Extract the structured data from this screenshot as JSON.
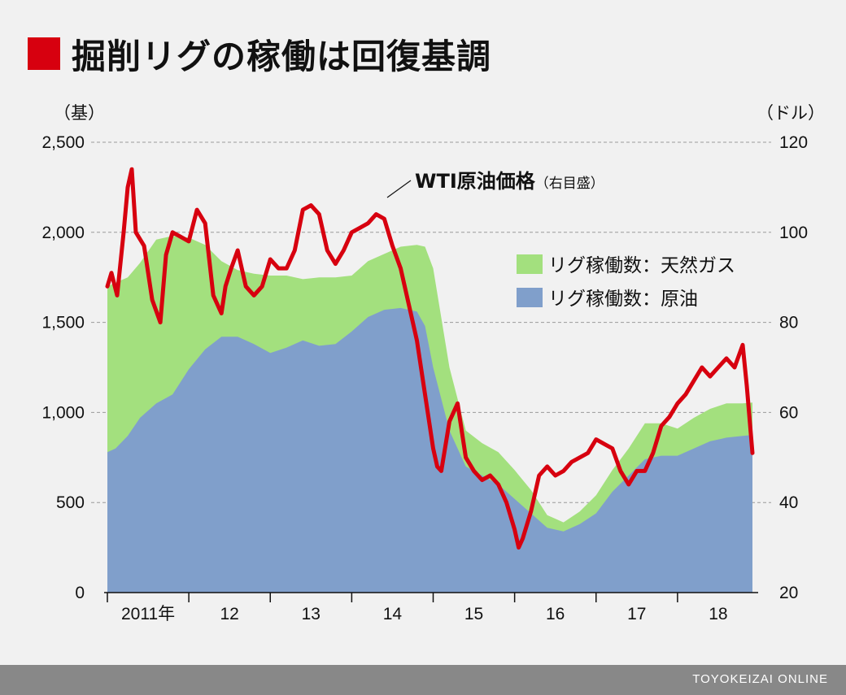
{
  "title": "掘削リグの稼働は回復基調",
  "footer": "TOYOKEIZAI ONLINE",
  "chart_data": {
    "type": "area",
    "left_axis_unit": "（基）",
    "right_axis_unit": "（ドル）",
    "left_ylim": [
      0,
      2500
    ],
    "right_ylim": [
      20,
      120
    ],
    "left_ticks": [
      "0",
      "500",
      "1,000",
      "1,500",
      "2,000",
      "2,500"
    ],
    "left_tick_values": [
      0,
      500,
      1000,
      1500,
      2000,
      2500
    ],
    "right_ticks": [
      "20",
      "40",
      "60",
      "80",
      "100",
      "120"
    ],
    "right_tick_values": [
      20,
      40,
      60,
      80,
      100,
      120
    ],
    "x_labels": [
      "2011年",
      "12",
      "13",
      "14",
      "15",
      "16",
      "17",
      "18"
    ],
    "x_label_positions": [
      2011.5,
      2012.5,
      2013.5,
      2014.5,
      2015.5,
      2016.5,
      2017.5,
      2018.5
    ],
    "x_range": [
      2011,
      2018.95
    ],
    "grid": "horizontal-dashed",
    "colors": {
      "total": "#a3e07e",
      "oil": "#809fcb",
      "wti": "#d7000f"
    },
    "legend": {
      "placement": "right",
      "items": [
        {
          "label": "リグ稼働数：天然ガス",
          "color": "#a3e07e"
        },
        {
          "label": "リグ稼働数：原油",
          "color": "#809fcb"
        }
      ]
    },
    "annotation": {
      "label": "WTI原油価格",
      "suffix": "（右目盛）"
    },
    "series": [
      {
        "name": "リグ稼働数：原油",
        "axis": "left",
        "x": [
          2011.0,
          2011.1,
          2011.25,
          2011.4,
          2011.6,
          2011.8,
          2012.0,
          2012.2,
          2012.4,
          2012.6,
          2012.8,
          2013.0,
          2013.2,
          2013.4,
          2013.6,
          2013.8,
          2014.0,
          2014.2,
          2014.4,
          2014.6,
          2014.8,
          2014.9,
          2015.0,
          2015.2,
          2015.4,
          2015.6,
          2015.8,
          2016.0,
          2016.2,
          2016.4,
          2016.6,
          2016.8,
          2017.0,
          2017.2,
          2017.4,
          2017.6,
          2017.8,
          2018.0,
          2018.2,
          2018.4,
          2018.6,
          2018.8,
          2018.92
        ],
        "y": [
          780,
          800,
          870,
          970,
          1050,
          1100,
          1240,
          1350,
          1420,
          1420,
          1380,
          1330,
          1360,
          1400,
          1370,
          1380,
          1450,
          1530,
          1570,
          1580,
          1560,
          1480,
          1250,
          900,
          700,
          650,
          600,
          520,
          440,
          360,
          340,
          380,
          440,
          560,
          650,
          740,
          760,
          760,
          800,
          840,
          860,
          870,
          875
        ]
      },
      {
        "name": "リグ稼働数：天然ガス",
        "axis": "left",
        "stacked": true,
        "x": [
          2011.0,
          2011.1,
          2011.25,
          2011.4,
          2011.6,
          2011.8,
          2012.0,
          2012.2,
          2012.4,
          2012.6,
          2012.8,
          2013.0,
          2013.2,
          2013.4,
          2013.6,
          2013.8,
          2014.0,
          2014.2,
          2014.4,
          2014.6,
          2014.8,
          2014.9,
          2015.0,
          2015.2,
          2015.4,
          2015.6,
          2015.8,
          2016.0,
          2016.2,
          2016.4,
          2016.6,
          2016.8,
          2017.0,
          2017.2,
          2017.4,
          2017.6,
          2017.8,
          2018.0,
          2018.2,
          2018.4,
          2018.6,
          2018.8,
          2018.92
        ],
        "y": [
          920,
          920,
          880,
          860,
          910,
          880,
          730,
          580,
          420,
          370,
          390,
          430,
          400,
          340,
          380,
          370,
          310,
          310,
          310,
          340,
          370,
          440,
          550,
          350,
          200,
          180,
          180,
          160,
          130,
          70,
          50,
          70,
          100,
          120,
          150,
          200,
          180,
          150,
          170,
          180,
          190,
          180,
          180
        ]
      },
      {
        "name": "WTI原油価格",
        "axis": "right",
        "x": [
          2011.0,
          2011.05,
          2011.12,
          2011.2,
          2011.25,
          2011.3,
          2011.35,
          2011.45,
          2011.55,
          2011.65,
          2011.72,
          2011.8,
          2011.9,
          2012.0,
          2012.1,
          2012.2,
          2012.3,
          2012.4,
          2012.45,
          2012.52,
          2012.6,
          2012.7,
          2012.8,
          2012.9,
          2013.0,
          2013.1,
          2013.2,
          2013.3,
          2013.4,
          2013.5,
          2013.6,
          2013.7,
          2013.8,
          2013.9,
          2014.0,
          2014.1,
          2014.2,
          2014.3,
          2014.4,
          2014.5,
          2014.6,
          2014.7,
          2014.8,
          2014.9,
          2015.0,
          2015.05,
          2015.1,
          2015.2,
          2015.3,
          2015.4,
          2015.5,
          2015.6,
          2015.7,
          2015.8,
          2015.9,
          2016.0,
          2016.05,
          2016.1,
          2016.2,
          2016.3,
          2016.4,
          2016.5,
          2016.6,
          2016.7,
          2016.8,
          2016.9,
          2017.0,
          2017.1,
          2017.2,
          2017.3,
          2017.4,
          2017.5,
          2017.6,
          2017.7,
          2017.8,
          2017.9,
          2018.0,
          2018.1,
          2018.2,
          2018.3,
          2018.4,
          2018.5,
          2018.6,
          2018.7,
          2018.8,
          2018.85,
          2018.92
        ],
        "y": [
          88,
          91,
          86,
          100,
          110,
          114,
          100,
          97,
          85,
          80,
          95,
          100,
          99,
          98,
          105,
          102,
          86,
          82,
          88,
          92,
          96,
          88,
          86,
          88,
          94,
          92,
          92,
          96,
          105,
          106,
          104,
          96,
          93,
          96,
          100,
          101,
          102,
          104,
          103,
          97,
          92,
          84,
          76,
          64,
          52,
          48,
          47,
          58,
          62,
          50,
          47,
          45,
          46,
          44,
          40,
          34,
          30,
          32,
          38,
          46,
          48,
          46,
          47,
          49,
          50,
          51,
          54,
          53,
          52,
          47,
          44,
          47,
          47,
          51,
          57,
          59,
          62,
          64,
          67,
          70,
          68,
          70,
          72,
          70,
          75,
          66,
          51
        ]
      }
    ]
  }
}
